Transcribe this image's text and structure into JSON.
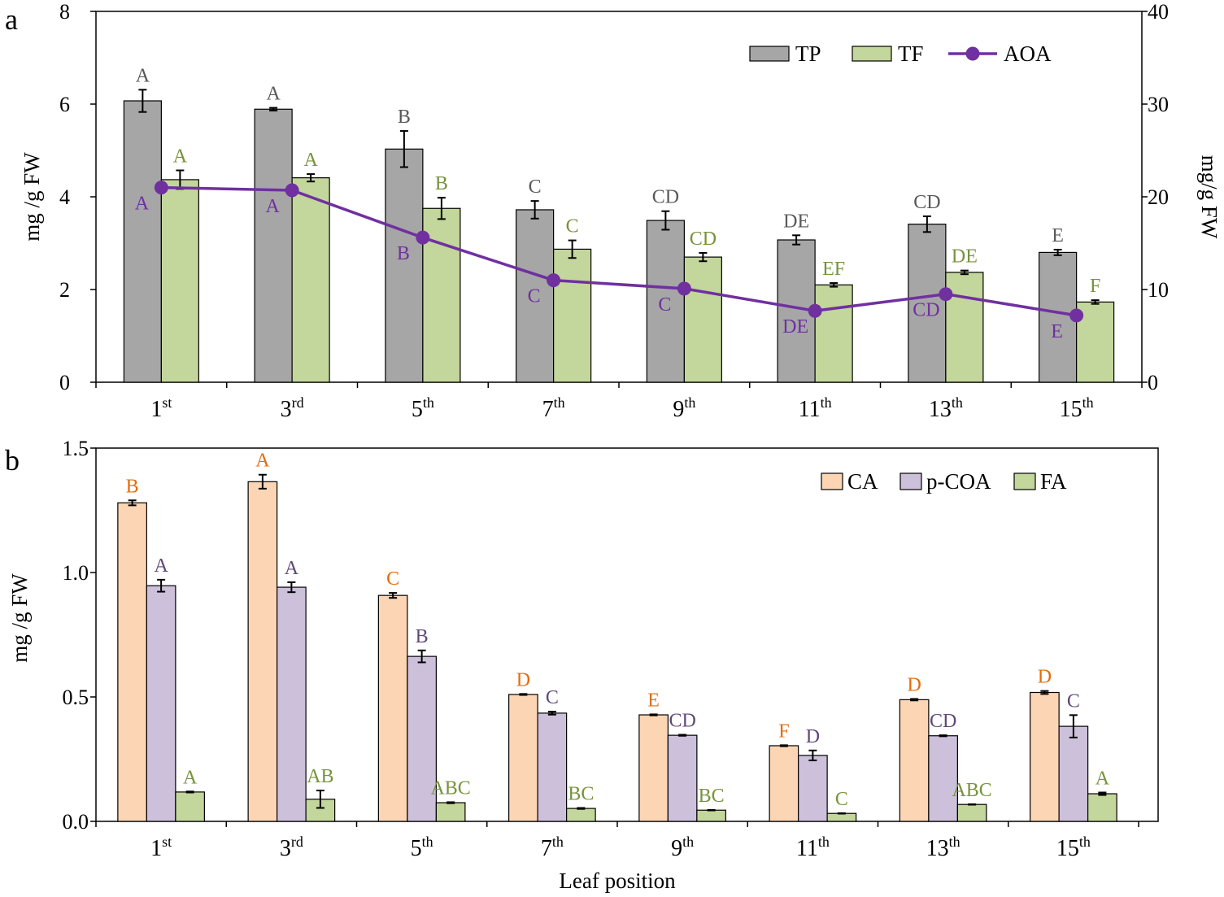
{
  "chart_data": [
    {
      "panel": "a",
      "type": "bar",
      "categories": [
        {
          "n": "1",
          "sup": "st"
        },
        {
          "n": "3",
          "sup": "rd"
        },
        {
          "n": "5",
          "sup": "th"
        },
        {
          "n": "7",
          "sup": "th"
        },
        {
          "n": "9",
          "sup": "th"
        },
        {
          "n": "11",
          "sup": "th"
        },
        {
          "n": "13",
          "sup": "th"
        },
        {
          "n": "15",
          "sup": "th"
        }
      ],
      "ylabel": "mg /g FW",
      "y2label": "mg/g FW",
      "ylim": [
        0,
        8
      ],
      "y2lim": [
        0,
        40
      ],
      "yticks": [
        "0",
        "2",
        "4",
        "6",
        "8"
      ],
      "y2ticks": [
        "0",
        "10",
        "20",
        "30",
        "40"
      ],
      "series": [
        {
          "name": "TP",
          "type": "bar",
          "color": "#a6a6a6",
          "letter_color": "#595959",
          "values": [
            6.07,
            5.89,
            5.03,
            3.72,
            3.49,
            3.07,
            3.41,
            2.8
          ],
          "errors": [
            0.24,
            0.03,
            0.39,
            0.19,
            0.2,
            0.1,
            0.17,
            0.06
          ],
          "letters": [
            "A",
            "A",
            "B",
            "C",
            "CD",
            "DE",
            "CD",
            "E"
          ]
        },
        {
          "name": "TF",
          "type": "bar",
          "color": "#c3d69b",
          "letter_color": "#76923c",
          "values": [
            4.37,
            4.41,
            3.75,
            2.87,
            2.7,
            2.1,
            2.37,
            1.73
          ],
          "errors": [
            0.2,
            0.08,
            0.23,
            0.19,
            0.09,
            0.04,
            0.04,
            0.04
          ],
          "letters": [
            "A",
            "A",
            "B",
            "C",
            "CD",
            "EF",
            "DE",
            "F"
          ]
        },
        {
          "name": "AOA",
          "type": "line",
          "secondary_axis": true,
          "color": "#7030a0",
          "letter_color": "#7030a0",
          "values": [
            21.0,
            20.7,
            15.6,
            11.0,
            10.1,
            7.7,
            9.5,
            7.2
          ],
          "letters": [
            "A",
            "A",
            "B",
            "C",
            "C",
            "DE",
            "CD",
            "E"
          ]
        }
      ]
    },
    {
      "panel": "b",
      "type": "bar",
      "categories": [
        {
          "n": "1",
          "sup": "st"
        },
        {
          "n": "3",
          "sup": "rd"
        },
        {
          "n": "5",
          "sup": "th"
        },
        {
          "n": "7",
          "sup": "th"
        },
        {
          "n": "9",
          "sup": "th"
        },
        {
          "n": "11",
          "sup": "th"
        },
        {
          "n": "13",
          "sup": "th"
        },
        {
          "n": "15",
          "sup": "th"
        }
      ],
      "xlabel": "Leaf position",
      "ylabel": "mg /g FW",
      "ylim": [
        0,
        1.5
      ],
      "yticks": [
        "0.0",
        "0.5",
        "1.0",
        "1.5"
      ],
      "series": [
        {
          "name": "CA",
          "type": "bar",
          "color": "#fcd5b4",
          "letter_color": "#e46c0a",
          "values": [
            1.28,
            1.365,
            0.908,
            0.51,
            0.428,
            0.304,
            0.489,
            0.518
          ],
          "errors": [
            0.01,
            0.028,
            0.01,
            0.002,
            0.002,
            0.002,
            0.003,
            0.006
          ],
          "letters": [
            "B",
            "A",
            "C",
            "D",
            "E",
            "F",
            "D",
            "D"
          ]
        },
        {
          "name": "p-COA",
          "type": "bar",
          "color": "#ccc0da",
          "letter_color": "#5f497a",
          "values": [
            0.947,
            0.941,
            0.663,
            0.435,
            0.346,
            0.265,
            0.344,
            0.382
          ],
          "errors": [
            0.024,
            0.02,
            0.024,
            0.006,
            0.002,
            0.02,
            0.002,
            0.045
          ],
          "letters": [
            "A",
            "A",
            "B",
            "C",
            "CD",
            "D",
            "CD",
            "C"
          ]
        },
        {
          "name": "FA",
          "type": "bar",
          "color": "#c3d69b",
          "letter_color": "#77933c",
          "values": [
            0.118,
            0.089,
            0.075,
            0.052,
            0.045,
            0.032,
            0.068,
            0.111
          ],
          "errors": [
            0.002,
            0.035,
            0.002,
            0.002,
            0.001,
            0.001,
            0.001,
            0.005
          ],
          "letters": [
            "A",
            "AB",
            "ABC",
            "BC",
            "BC",
            "C",
            "ABC",
            "A"
          ]
        }
      ]
    }
  ]
}
